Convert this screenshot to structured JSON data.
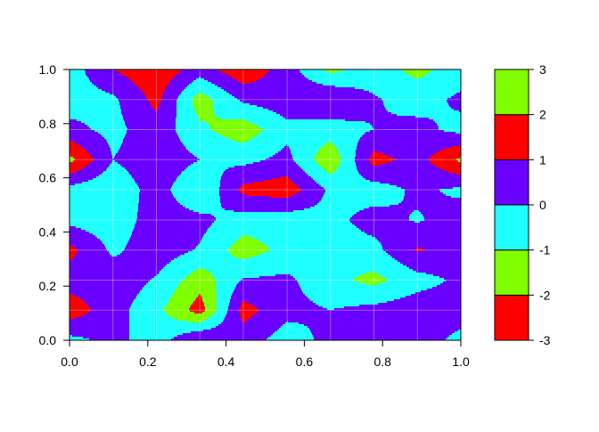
{
  "chart_data": {
    "type": "heatmap",
    "subtype": "filled-contour",
    "title": "",
    "xlabel": "",
    "ylabel": "",
    "xlim": [
      0,
      1
    ],
    "ylim": [
      0,
      1
    ],
    "grid": true,
    "x_ticks": [
      "0.0",
      "0.2",
      "0.4",
      "0.6",
      "0.8",
      "1.0"
    ],
    "y_ticks": [
      "0.0",
      "0.2",
      "0.4",
      "0.6",
      "0.8",
      "1.0"
    ],
    "grid_x": [
      0,
      0.111,
      0.222,
      0.333,
      0.444,
      0.556,
      0.667,
      0.778,
      0.889,
      1
    ],
    "grid_y": [
      1,
      0.889,
      0.778,
      0.667,
      0.556,
      0.444,
      0.333,
      0.222,
      0.111,
      0
    ],
    "z_rows_top_to_bottom": [
      [
        -0.5,
        1.0,
        1.8,
        0.5,
        1.8,
        0.5,
        -1.3,
        -0.5,
        -1.3,
        -0.5
      ],
      [
        -0.5,
        -0.2,
        1.3,
        -1.5,
        0.2,
        0.6,
        1.05,
        0.1,
        -0.4,
        0.2
      ],
      [
        0.3,
        -0.3,
        0.6,
        -0.8,
        -1.6,
        -0.3,
        -0.5,
        0.0,
        0.3,
        -0.3
      ],
      [
        2.3,
        0.0,
        0.7,
        0.0,
        -0.3,
        0.3,
        -1.8,
        1.4,
        0.6,
        2.2
      ],
      [
        -0.4,
        -0.8,
        0.5,
        -1.05,
        1.3,
        1.6,
        -0.2,
        -0.5,
        0.2,
        -0.2
      ],
      [
        -0.3,
        -0.6,
        0.5,
        0.3,
        -0.5,
        -0.6,
        -0.3,
        0.4,
        -0.1,
        0.5
      ],
      [
        1.3,
        -0.2,
        0.6,
        -0.1,
        -1.5,
        -0.7,
        -0.5,
        -0.3,
        1.1,
        0.6
      ],
      [
        0.5,
        0.6,
        -0.1,
        -1.6,
        0.1,
        0.2,
        -0.7,
        -1.3,
        -0.4,
        0.2
      ],
      [
        1.6,
        0.4,
        -0.7,
        -2.5,
        1.4,
        0.3,
        0.0,
        0.3,
        0.6,
        0.5
      ],
      [
        -0.3,
        0.3,
        -0.5,
        1.1,
        0.5,
        -0.5,
        0.3,
        0.6,
        0.5,
        -0.3
      ]
    ],
    "levels": [
      -3,
      -2,
      -1,
      0,
      1,
      2,
      3
    ],
    "level_colors": [
      "#FF0000",
      "#80FF00",
      "#20FFFF",
      "#6A00FF",
      "#FF0000",
      "#80FF00"
    ],
    "legend": {
      "placement": "right",
      "tick_labels": [
        "3",
        "2",
        "1",
        "0",
        "-1",
        "-2",
        "-3"
      ]
    }
  }
}
